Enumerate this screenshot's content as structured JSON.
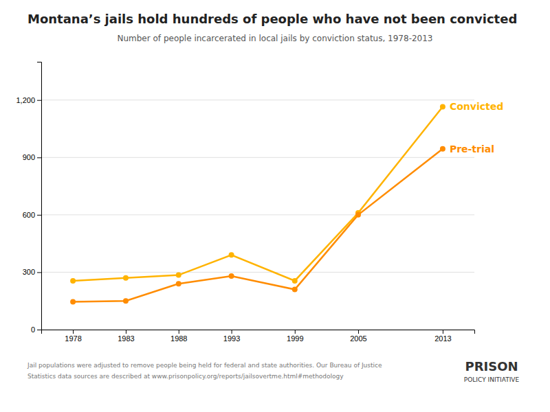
{
  "chart_data": {
    "type": "line",
    "title": "Montana’s jails hold hundreds of people who have not been convicted",
    "subtitle": "Number of people incarcerated in local jails by conviction status, 1978-2013",
    "x": [
      1978,
      1983,
      1988,
      1993,
      1999,
      2005,
      2013
    ],
    "series": [
      {
        "name": "Convicted",
        "color": "#FFB300",
        "values": [
          255,
          270,
          285,
          390,
          255,
          610,
          1165
        ]
      },
      {
        "name": "Pre-trial",
        "color": "#FF8C00",
        "values": [
          145,
          150,
          240,
          280,
          210,
          600,
          945
        ]
      }
    ],
    "xlim": [
      1975,
      2016
    ],
    "xticks": [
      1978,
      1983,
      1988,
      1993,
      1999,
      2005,
      2013
    ],
    "ylim": [
      0,
      1400
    ],
    "yticks": [
      0,
      300,
      600,
      900,
      {
        "value": 1200,
        "label": "1,200"
      }
    ],
    "grid": true,
    "marker": "circle",
    "annotations": [
      "Jail populations were adjusted to remove people being held for federal and state authorities. Our Bureau of Justice",
      "Statistics data sources are described at www.prisonpolicy.org/reports/jailsovertme.html#methodology",
      "PRISON",
      "POLICY INITIATIVE"
    ]
  }
}
